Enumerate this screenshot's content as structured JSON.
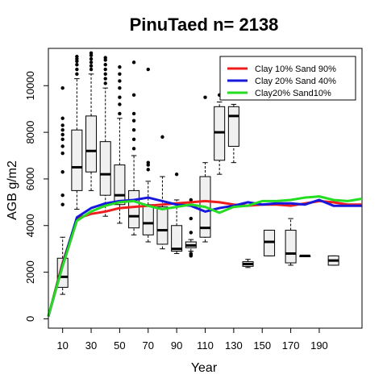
{
  "chart_data": {
    "type": "boxplot+line",
    "title": "PinuTaed n= 2138",
    "xlabel": "Year",
    "ylabel": "AGB g/m2",
    "xlim": [
      0,
      220
    ],
    "ylim": [
      -400,
      11600
    ],
    "x_ticks": [
      10,
      30,
      50,
      70,
      90,
      110,
      130,
      150,
      170,
      190
    ],
    "y_ticks": [
      0,
      2000,
      4000,
      6000,
      8000,
      10000
    ],
    "legend_position": "top-right",
    "grid": false,
    "boxes": [
      {
        "x": 10,
        "whisker_low": 1050,
        "q1": 1350,
        "median": 1800,
        "q3": 2600,
        "whisker_high": 3500,
        "outliers": [
          4900,
          5300,
          6300,
          7100,
          7400,
          7700,
          7900,
          8100,
          8300,
          8600,
          9900
        ]
      },
      {
        "x": 20,
        "whisker_low": 4700,
        "q1": 5500,
        "median": 6500,
        "q3": 8100,
        "whisker_high": 10300,
        "outliers": [
          10500,
          10700,
          10900,
          11050,
          11150,
          11250
        ]
      },
      {
        "x": 30,
        "whisker_low": 5500,
        "q1": 6300,
        "median": 7200,
        "q3": 8700,
        "whisker_high": 10500,
        "outliers": [
          10700,
          10850,
          11000,
          11150,
          11300,
          11400
        ]
      },
      {
        "x": 40,
        "whisker_low": 4400,
        "q1": 5300,
        "median": 6200,
        "q3": 7600,
        "whisker_high": 9900,
        "outliers": [
          10100,
          10300,
          10500,
          10700,
          10900,
          11100,
          11200
        ]
      },
      {
        "x": 50,
        "whisker_low": 4100,
        "q1": 4900,
        "median": 5300,
        "q3": 6600,
        "whisker_high": 8600,
        "outliers": [
          8800,
          9200,
          9500,
          9900,
          10200,
          10500,
          10800
        ]
      },
      {
        "x": 60,
        "whisker_low": 3600,
        "q1": 3900,
        "median": 4400,
        "q3": 5500,
        "whisker_high": 7000,
        "outliers": [
          7300,
          7700,
          8100,
          8500,
          8800,
          9600,
          11000
        ]
      },
      {
        "x": 70,
        "whisker_low": 3300,
        "q1": 3600,
        "median": 4100,
        "q3": 4900,
        "whisker_high": 5900,
        "outliers": [
          6400,
          6600,
          6700,
          10700
        ]
      },
      {
        "x": 80,
        "whisker_low": 3000,
        "q1": 3200,
        "median": 3800,
        "q3": 4800,
        "whisker_high": 6100,
        "outliers": [
          7800
        ]
      },
      {
        "x": 90,
        "whisker_low": 2800,
        "q1": 2900,
        "median": 3000,
        "q3": 4000,
        "whisker_high": 5100,
        "outliers": [
          6200
        ]
      },
      {
        "x": 100,
        "whisker_low": 2900,
        "q1": 3050,
        "median": 3150,
        "q3": 3300,
        "whisker_high": 3400,
        "outliers": [
          2700,
          2750,
          2800,
          3700,
          4300,
          5100
        ]
      },
      {
        "x": 110,
        "whisker_low": 3300,
        "q1": 3500,
        "median": 3900,
        "q3": 6100,
        "whisker_high": 6700,
        "outliers": [
          9500
        ]
      },
      {
        "x": 120,
        "whisker_low": 6200,
        "q1": 6800,
        "median": 8000,
        "q3": 9100,
        "whisker_high": 9300,
        "outliers": [
          9600
        ]
      },
      {
        "x": 130,
        "whisker_low": 6700,
        "q1": 7400,
        "median": 8700,
        "q3": 9100,
        "whisker_high": 9200,
        "outliers": []
      },
      {
        "x": 140,
        "whisker_low": 2200,
        "q1": 2250,
        "median": 2350,
        "q3": 2450,
        "whisker_high": 2550,
        "outliers": []
      },
      {
        "x": 155,
        "whisker_low": 2700,
        "q1": 2700,
        "median": 3300,
        "q3": 3800,
        "whisker_high": 3800,
        "outliers": []
      },
      {
        "x": 170,
        "whisker_low": 2300,
        "q1": 2400,
        "median": 2800,
        "q3": 3800,
        "whisker_high": 4300,
        "outliers": []
      },
      {
        "x": 180,
        "whisker_low": 2700,
        "q1": 2700,
        "median": 2700,
        "q3": 2700,
        "whisker_high": 2700,
        "outliers": []
      },
      {
        "x": 200,
        "whisker_low": 2300,
        "q1": 2300,
        "median": 2500,
        "q3": 2700,
        "whisker_high": 2700,
        "outliers": []
      }
    ],
    "series": [
      {
        "name": "Clay 10% Sand 90%",
        "color": "#ee1c1c",
        "x": [
          0,
          10,
          20,
          30,
          40,
          50,
          60,
          70,
          80,
          90,
          100,
          110,
          120,
          130,
          140,
          150,
          160,
          170,
          180,
          190,
          200,
          210,
          220
        ],
        "y": [
          100,
          2400,
          4300,
          4500,
          4600,
          4750,
          4800,
          4850,
          4900,
          4950,
          5000,
          5050,
          5000,
          4900,
          4850,
          4900,
          4900,
          4850,
          4950,
          5050,
          5000,
          4900,
          4900
        ]
      },
      {
        "name": "Clay 20% Sand 40%",
        "color": "#1818dd",
        "x": [
          0,
          10,
          20,
          30,
          40,
          50,
          60,
          70,
          80,
          90,
          100,
          110,
          120,
          130,
          140,
          150,
          160,
          170,
          180,
          190,
          200,
          210,
          220
        ],
        "y": [
          100,
          2300,
          4350,
          4750,
          4950,
          5050,
          5100,
          5200,
          5050,
          4900,
          4850,
          4600,
          4750,
          4850,
          5000,
          4900,
          4950,
          4950,
          4900,
          5100,
          4850,
          4850,
          4850
        ]
      },
      {
        "name": "Clay20% Sand10%",
        "color": "#22dd22",
        "x": [
          0,
          10,
          20,
          30,
          40,
          50,
          60,
          70,
          80,
          90,
          100,
          110,
          120,
          130,
          140,
          150,
          160,
          170,
          180,
          190,
          200,
          210,
          220
        ],
        "y": [
          100,
          2250,
          4200,
          4600,
          4850,
          5000,
          5050,
          4850,
          4700,
          4800,
          4900,
          4800,
          4550,
          4800,
          4850,
          5050,
          5050,
          5100,
          5200,
          5250,
          5100,
          5050,
          5150
        ]
      }
    ]
  }
}
